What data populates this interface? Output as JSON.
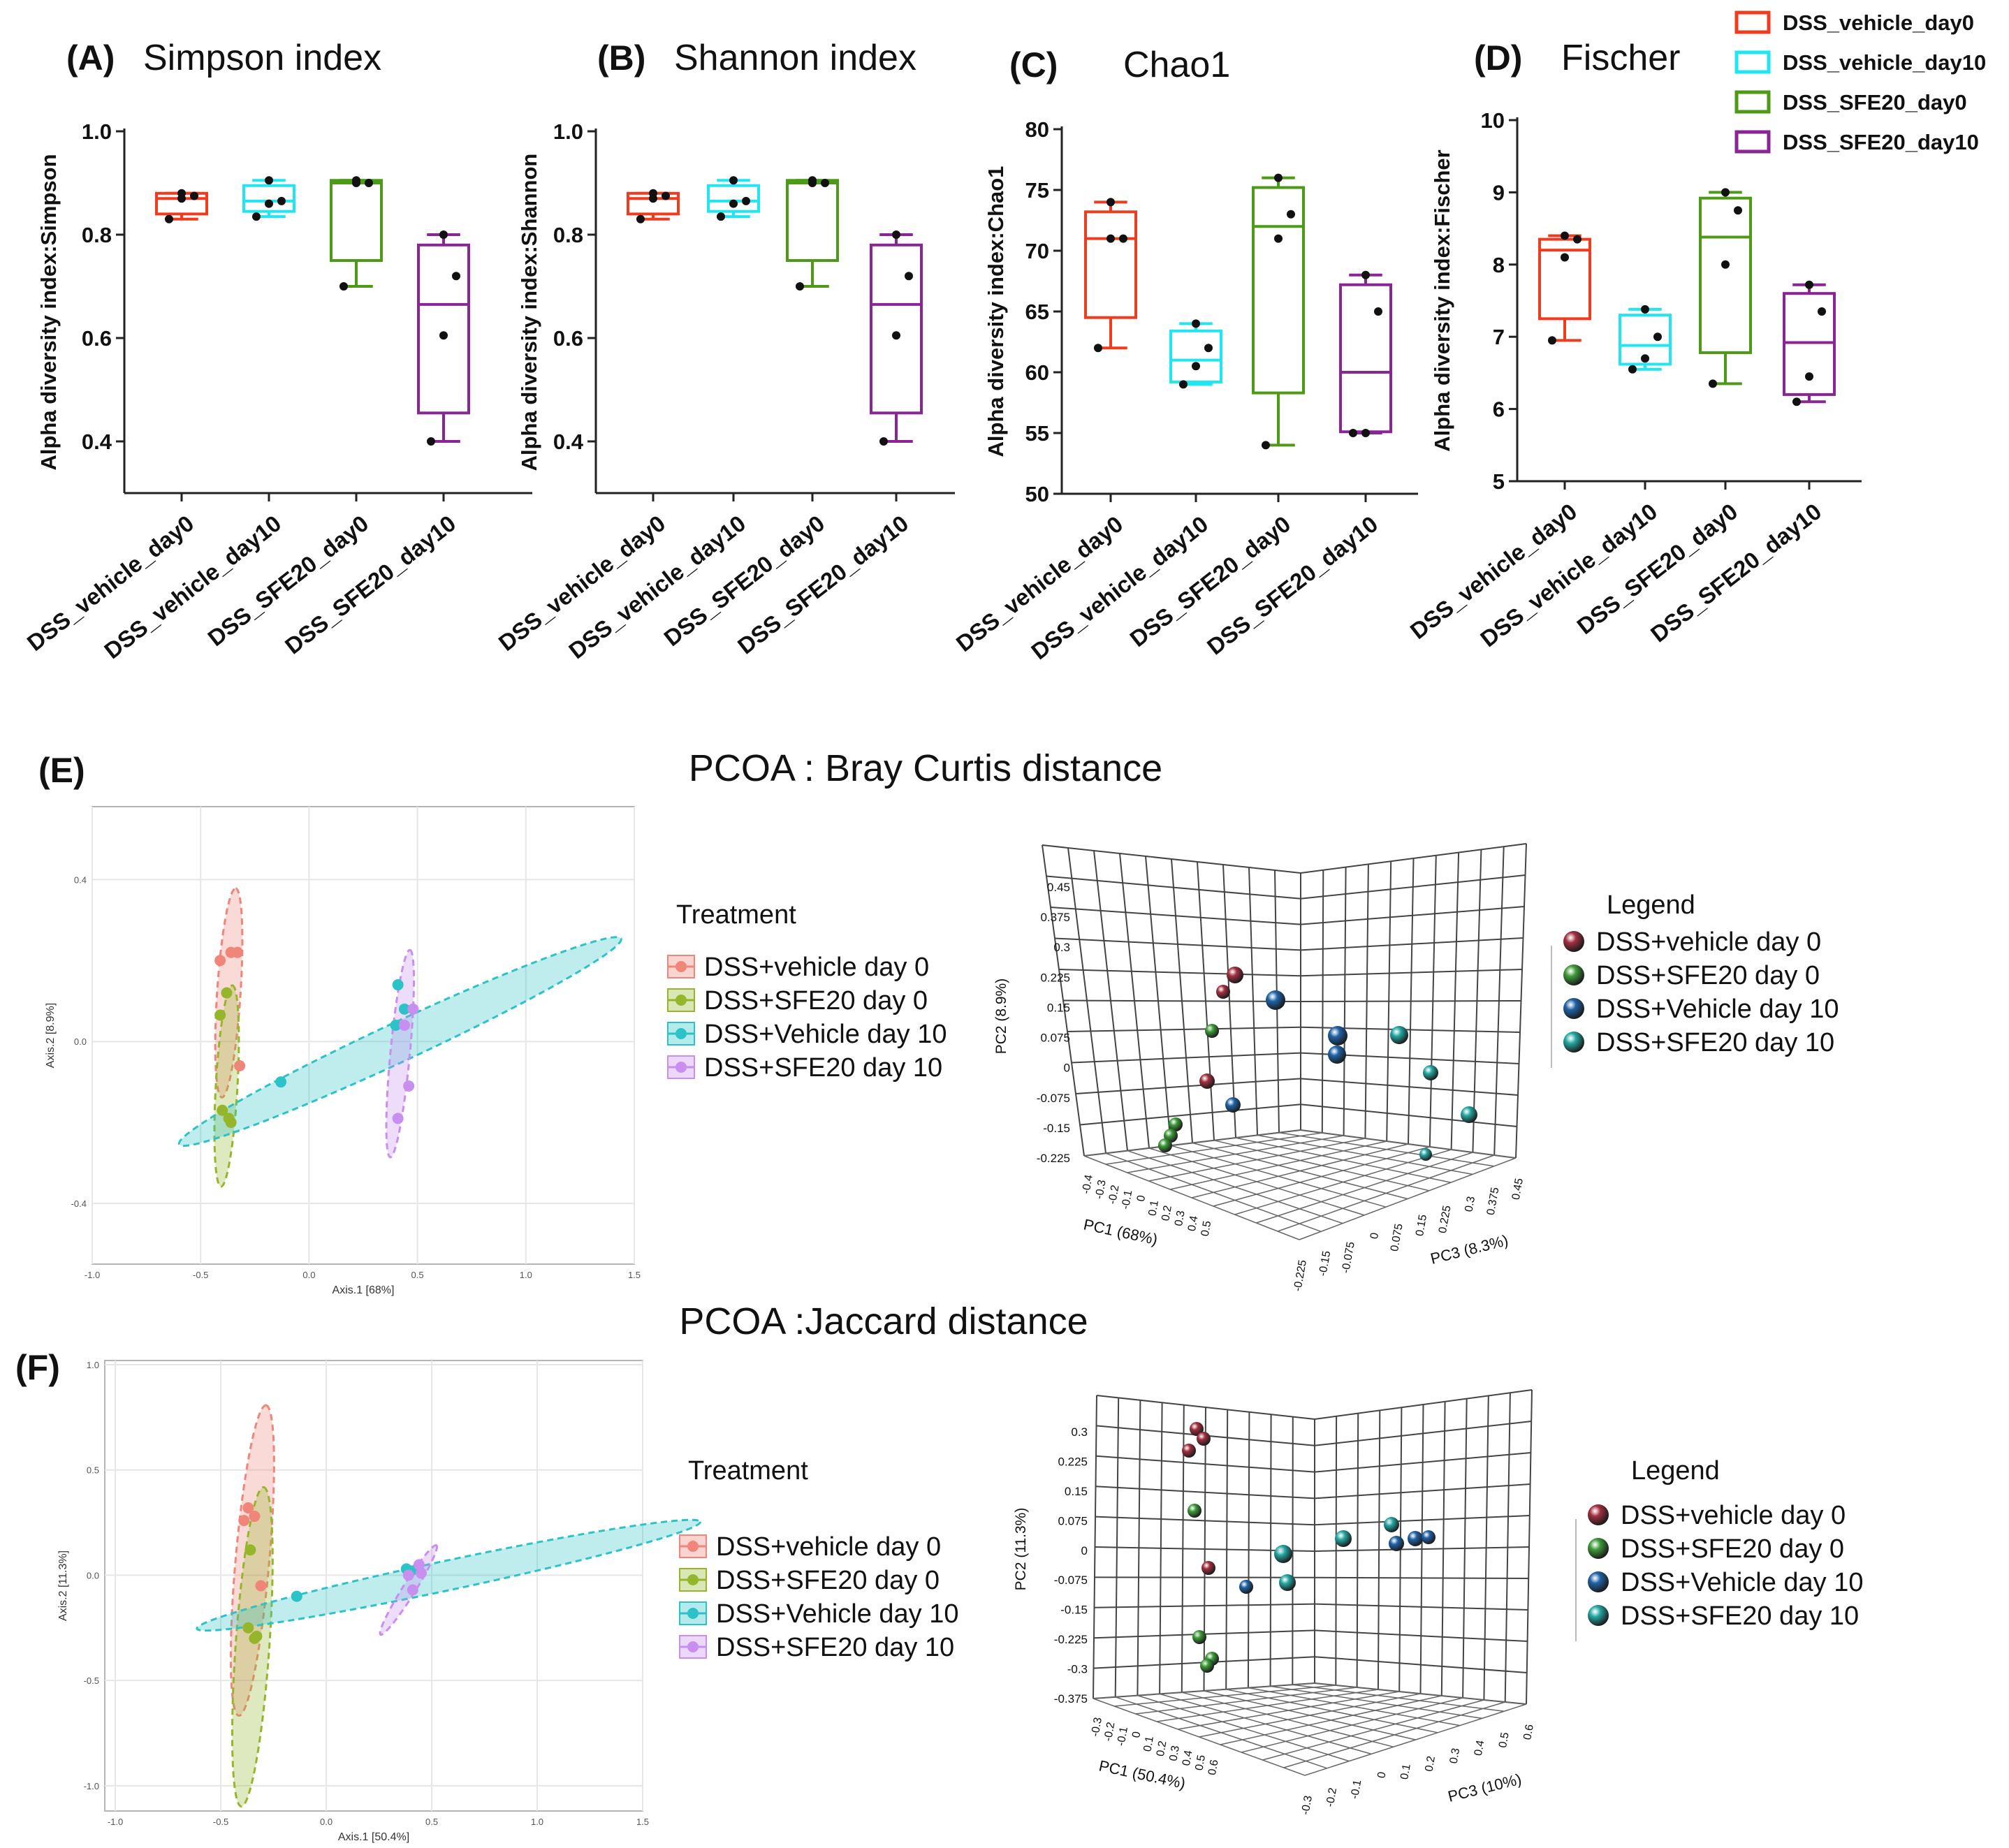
{
  "colors": {
    "vehicle_day0": "#f03c1e",
    "vehicle_day10": "#1fe6f2",
    "sfe20_day0": "#4c9a16",
    "sfe20_day10": "#8a2596",
    "pcoa_vehicle_day0": "#f0857a",
    "pcoa_sfe20_day0": "#95b62a",
    "pcoa_vehicle_day10": "#2cc3c8",
    "pcoa_sfe20_day10": "#c88ef0",
    "ball_vehicle_day0": "#a33040",
    "ball_sfe20_day0": "#3f9c3a",
    "ball_vehicle_day10": "#2063a8",
    "ball_sfe20_day10": "#25a8a3"
  },
  "legend_top": [
    "DSS_vehicle_day0",
    "DSS_vehicle_day10",
    "DSS_SFE20_day0",
    "DSS_SFE20_day10"
  ],
  "group_labels": [
    "DSS_vehicle_day0",
    "DSS_vehicle_day10",
    "DSS_SFE20_day0",
    "DSS_SFE20_day10"
  ],
  "chart_data": [
    {
      "type": "box",
      "panel": "(A)",
      "title": "Simpson index",
      "ylabel": "Alpha diversity index:Simpson",
      "ylim": [
        0.3,
        1.0
      ],
      "yticks": [
        0.4,
        0.6,
        0.8,
        1.0
      ],
      "ytick_labels": [
        "0.4",
        "0.6",
        "0.8",
        "1.0"
      ],
      "categories": [
        "DSS_vehicle_day0",
        "DSS_vehicle_day10",
        "DSS_SFE20_day0",
        "DSS_SFE20_day10"
      ],
      "boxes": [
        {
          "min": 0.83,
          "q1": 0.84,
          "median": 0.87,
          "q3": 0.88,
          "max": 0.88,
          "points": [
            0.83,
            0.87,
            0.875,
            0.88
          ]
        },
        {
          "min": 0.835,
          "q1": 0.845,
          "median": 0.865,
          "q3": 0.895,
          "max": 0.905,
          "points": [
            0.835,
            0.86,
            0.865,
            0.905
          ]
        },
        {
          "min": 0.7,
          "q1": 0.75,
          "median": 0.9,
          "q3": 0.905,
          "max": 0.905,
          "points": [
            0.7,
            0.9,
            0.9,
            0.905
          ]
        },
        {
          "min": 0.4,
          "q1": 0.455,
          "median": 0.665,
          "q3": 0.78,
          "max": 0.8,
          "points": [
            0.4,
            0.605,
            0.72,
            0.8
          ]
        }
      ]
    },
    {
      "type": "box",
      "panel": "(B)",
      "title": "Shannon index",
      "ylabel": "Alpha diversity index:Shannon",
      "ylim": [
        0.3,
        1.0
      ],
      "yticks": [
        0.4,
        0.6,
        0.8,
        1.0
      ],
      "ytick_labels": [
        "0.4",
        "0.6",
        "0.8",
        "1.0"
      ],
      "categories": [
        "DSS_vehicle_day0",
        "DSS_vehicle_day10",
        "DSS_SFE20_day0",
        "DSS_SFE20_day10"
      ],
      "boxes": [
        {
          "min": 0.83,
          "q1": 0.84,
          "median": 0.87,
          "q3": 0.88,
          "max": 0.88,
          "points": [
            0.83,
            0.87,
            0.875,
            0.88
          ]
        },
        {
          "min": 0.835,
          "q1": 0.845,
          "median": 0.865,
          "q3": 0.895,
          "max": 0.905,
          "points": [
            0.835,
            0.86,
            0.865,
            0.905
          ]
        },
        {
          "min": 0.7,
          "q1": 0.75,
          "median": 0.9,
          "q3": 0.905,
          "max": 0.905,
          "points": [
            0.7,
            0.9,
            0.9,
            0.905
          ]
        },
        {
          "min": 0.4,
          "q1": 0.455,
          "median": 0.665,
          "q3": 0.78,
          "max": 0.8,
          "points": [
            0.4,
            0.605,
            0.72,
            0.8
          ]
        }
      ]
    },
    {
      "type": "box",
      "panel": "(C)",
      "title": "Chao1",
      "ylabel": "Alpha diversity index:Chao1",
      "ylim": [
        50,
        80
      ],
      "yticks": [
        50,
        55,
        60,
        65,
        70,
        75,
        80
      ],
      "ytick_labels": [
        "50",
        "55",
        "60",
        "65",
        "70",
        "75",
        "80"
      ],
      "categories": [
        "DSS_vehicle_day0",
        "DSS_vehicle_day10",
        "DSS_SFE20_day0",
        "DSS_SFE20_day10"
      ],
      "boxes": [
        {
          "min": 62,
          "q1": 64.5,
          "median": 71,
          "q3": 73.2,
          "max": 74,
          "points": [
            62,
            71,
            71,
            74
          ]
        },
        {
          "min": 59,
          "q1": 59.2,
          "median": 61,
          "q3": 63.4,
          "max": 64,
          "points": [
            59,
            60.5,
            62,
            64
          ]
        },
        {
          "min": 54,
          "q1": 58.3,
          "median": 72,
          "q3": 75.2,
          "max": 76,
          "points": [
            54,
            71,
            73,
            76
          ]
        },
        {
          "min": 55,
          "q1": 55.1,
          "median": 60,
          "q3": 67.2,
          "max": 68,
          "points": [
            55,
            55,
            65,
            68
          ]
        }
      ]
    },
    {
      "type": "box",
      "panel": "(D)",
      "title": "Fischer",
      "ylabel": "Alpha diversity index:Fischer",
      "ylim": [
        5,
        10
      ],
      "yticks": [
        5,
        6,
        7,
        8,
        9,
        10
      ],
      "ytick_labels": [
        "5",
        "6",
        "7",
        "8",
        "9",
        "10"
      ],
      "categories": [
        "DSS_vehicle_day0",
        "DSS_vehicle_day10",
        "DSS_SFE20_day0",
        "DSS_SFE20_day10"
      ],
      "boxes": [
        {
          "min": 6.95,
          "q1": 7.25,
          "median": 8.2,
          "q3": 8.35,
          "max": 8.4,
          "points": [
            6.95,
            8.1,
            8.35,
            8.4
          ]
        },
        {
          "min": 6.55,
          "q1": 6.62,
          "median": 6.88,
          "q3": 7.3,
          "max": 7.38,
          "points": [
            6.55,
            6.7,
            7.0,
            7.38
          ]
        },
        {
          "min": 6.35,
          "q1": 6.78,
          "median": 8.38,
          "q3": 8.92,
          "max": 9.0,
          "points": [
            6.35,
            8.0,
            8.75,
            9.0
          ]
        },
        {
          "min": 6.1,
          "q1": 6.2,
          "median": 6.92,
          "q3": 7.6,
          "max": 7.72,
          "points": [
            6.1,
            6.45,
            7.35,
            7.72
          ]
        }
      ]
    },
    {
      "type": "scatter",
      "panel": "(E)",
      "title": "PCOA : Bray Curtis distance",
      "xlabel": "Axis.1  [68%]",
      "ylabel": "Axis.2  [8.9%]",
      "xlim": [
        -1.0,
        1.5
      ],
      "ylim": [
        -0.55,
        0.58
      ],
      "xticks": [
        -1.0,
        -0.5,
        0.0,
        0.5,
        1.0,
        1.5
      ],
      "xtick_labels": [
        "-1.0",
        "-0.5",
        "0.0",
        "0.5",
        "1.0",
        "1.5"
      ],
      "yticks": [
        -0.4,
        0.0,
        0.4
      ],
      "ytick_labels": [
        "-0.4",
        "0.0",
        "0.4"
      ],
      "legend_title": "Treatment",
      "series": [
        {
          "name": "DSS+vehicle day 0",
          "points": [
            [
              -0.36,
              0.22
            ],
            [
              -0.41,
              0.2
            ],
            [
              -0.33,
              0.22
            ],
            [
              -0.32,
              -0.06
            ],
            [
              -0.38,
              0.12
            ]
          ]
        },
        {
          "name": "DSS+SFE20 day 0",
          "points": [
            [
              -0.41,
              0.065
            ],
            [
              -0.4,
              -0.17
            ],
            [
              -0.37,
              -0.19
            ],
            [
              -0.36,
              -0.2
            ],
            [
              -0.38,
              0.12
            ]
          ]
        },
        {
          "name": "DSS+Vehicle day 10",
          "points": [
            [
              -0.13,
              -0.1
            ],
            [
              0.41,
              0.14
            ],
            [
              0.44,
              0.08
            ],
            [
              0.4,
              0.04
            ]
          ]
        },
        {
          "name": "DSS+SFE20 day 10",
          "points": [
            [
              0.48,
              0.08
            ],
            [
              0.46,
              -0.11
            ],
            [
              0.41,
              -0.19
            ],
            [
              0.44,
              0.04
            ]
          ]
        }
      ],
      "ellipses": [
        {
          "series": "DSS+vehicle day 0",
          "cx": -0.37,
          "cy": 0.12,
          "rx": 0.26,
          "ry": 0.054,
          "angle_deg": 83
        },
        {
          "series": "DSS+SFE20 day 0",
          "cx": -0.38,
          "cy": -0.11,
          "rx": 0.25,
          "ry": 0.05,
          "angle_deg": 84
        },
        {
          "series": "DSS+Vehicle day 10",
          "cx": 0.42,
          "cy": 0.0,
          "rx": 1.05,
          "ry": 0.09,
          "angle_deg": 14
        },
        {
          "series": "DSS+SFE20 day 10",
          "cx": 0.42,
          "cy": -0.03,
          "rx": 0.26,
          "ry": 0.045,
          "angle_deg": 80
        }
      ]
    },
    {
      "type": "scatter3d",
      "panel": "(E)",
      "xlabel": "PC1 (68%)",
      "ylabel": "PC2 (8.9%)",
      "zlabel": "PC3 (8.3%)",
      "y_ticks": [
        "0.45",
        "0.375",
        "0.3",
        "0.225",
        "0.15",
        "0.075",
        "0",
        "-0.075",
        "-0.15",
        "-0.225"
      ],
      "x_ticks": [
        "-0.4",
        "-0.3",
        "-0.2",
        "-0.1",
        "0",
        "0.1",
        "0.2",
        "0.3",
        "0.4",
        "0.5"
      ],
      "z_ticks": [
        "-0.225",
        "-0.15",
        "-0.075",
        "0",
        "0.075",
        "0.15",
        "0.225",
        "0.3",
        "0.375",
        "0.45"
      ],
      "legend_title": "Legend",
      "series": [
        {
          "name": "DSS+vehicle day 0"
        },
        {
          "name": "DSS+SFE20 day 0"
        },
        {
          "name": "DSS+Vehicle day 10"
        },
        {
          "name": "DSS+SFE20 day 10"
        }
      ]
    },
    {
      "type": "scatter",
      "panel": "(F)",
      "title": "PCOA :Jaccard distance",
      "xlabel": "Axis.1  [50.4%]",
      "ylabel": "Axis.2  [11.3%]",
      "xlim": [
        -1.05,
        1.5
      ],
      "ylim": [
        -1.12,
        1.02
      ],
      "xticks": [
        -1.0,
        -0.5,
        0.0,
        0.5,
        1.0,
        1.5
      ],
      "xtick_labels": [
        "-1.0",
        "-0.5",
        "0.0",
        "0.5",
        "1.0",
        "1.5"
      ],
      "yticks": [
        -1.0,
        -0.5,
        0.0,
        0.5,
        1.0
      ],
      "ytick_labels": [
        "-1.0",
        "-0.5",
        "0.0",
        "0.5",
        "1.0"
      ],
      "legend_title": "Treatment",
      "series": [
        {
          "name": "DSS+vehicle day 0",
          "points": [
            [
              -0.37,
              0.32
            ],
            [
              -0.39,
              0.26
            ],
            [
              -0.34,
              0.28
            ],
            [
              -0.31,
              -0.05
            ]
          ]
        },
        {
          "name": "DSS+SFE20 day 0",
          "points": [
            [
              -0.36,
              0.12
            ],
            [
              -0.37,
              -0.25
            ],
            [
              -0.34,
              -0.3
            ],
            [
              -0.33,
              -0.29
            ]
          ]
        },
        {
          "name": "DSS+Vehicle day 10",
          "points": [
            [
              -0.14,
              -0.1
            ],
            [
              0.38,
              0.03
            ],
            [
              0.4,
              0.02
            ],
            [
              0.43,
              0.03
            ]
          ]
        },
        {
          "name": "DSS+SFE20 day 10",
          "points": [
            [
              0.44,
              0.05
            ],
            [
              0.41,
              -0.07
            ],
            [
              0.45,
              0.01
            ],
            [
              0.39,
              0.0
            ]
          ]
        }
      ],
      "ellipses": [
        {
          "series": "DSS+vehicle day 0",
          "cx": -0.35,
          "cy": 0.07,
          "rx": 0.74,
          "ry": 0.08,
          "angle_deg": 85
        },
        {
          "series": "DSS+SFE20 day 0",
          "cx": -0.35,
          "cy": -0.34,
          "rx": 0.76,
          "ry": 0.08,
          "angle_deg": 86
        },
        {
          "series": "DSS+Vehicle day 10",
          "cx": 0.58,
          "cy": -0.0,
          "rx": 1.22,
          "ry": 0.07,
          "angle_deg": 12
        },
        {
          "series": "DSS+SFE20 day 10",
          "cx": 0.39,
          "cy": -0.07,
          "rx": 0.25,
          "ry": 0.03,
          "angle_deg": 58
        }
      ]
    },
    {
      "type": "scatter3d",
      "panel": "(F)",
      "xlabel": "PC1 (50.4%)",
      "ylabel": "PC2 (11.3%)",
      "zlabel": "PC3 (10%)",
      "y_ticks": [
        "0.3",
        "0.225",
        "0.15",
        "0.075",
        "0",
        "-0.075",
        "-0.15",
        "-0.225",
        "-0.3",
        "-0.375"
      ],
      "x_ticks": [
        "-0.3",
        "-0.2",
        "-0.1",
        "0",
        "0.1",
        "0.2",
        "0.3",
        "0.4",
        "0.5",
        "0.6"
      ],
      "z_ticks": [
        "-0.3",
        "-0.2",
        "-0.1",
        "0",
        "0.1",
        "0.2",
        "0.3",
        "0.4",
        "0.5",
        "0.6"
      ],
      "legend_title": "Legend",
      "series": [
        {
          "name": "DSS+vehicle day 0"
        },
        {
          "name": "DSS+SFE20 day 0"
        },
        {
          "name": "DSS+Vehicle day 10"
        },
        {
          "name": "DSS+SFE20 day 10"
        }
      ]
    }
  ]
}
